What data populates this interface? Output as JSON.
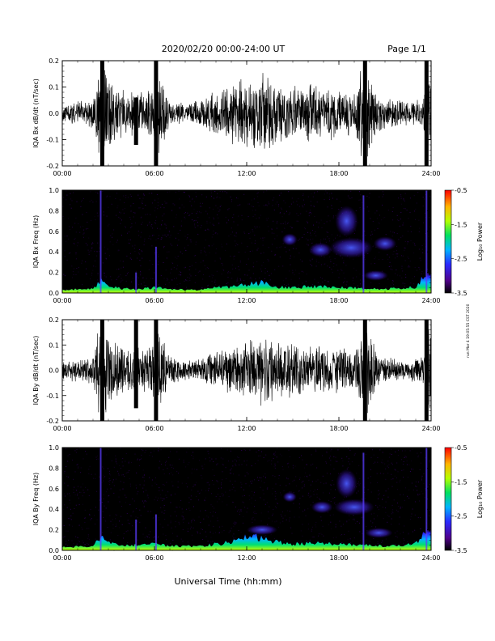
{
  "header": {
    "date_range": "2020/02/20  00:00-24:00 UT",
    "page": "Page 1/1"
  },
  "side_note": "run Mar 4 19:05:55 CST 2020",
  "xlabel": "Universal Time (hh:mm)",
  "colors": {
    "trace": "#000000",
    "background": "#ffffff",
    "spec_bg": "#000000"
  },
  "chart_data": [
    {
      "type": "line",
      "ylabel": "IQA Bx dB/dt (nT/sec)",
      "x_ticks": [
        "00:00",
        "06:00",
        "12:00",
        "18:00",
        "24:00"
      ],
      "xlim": [
        0,
        24
      ],
      "y_ticks": [
        "0.2",
        "0.1",
        "0.0",
        "-0.1",
        "-0.2"
      ],
      "ylim": [
        -0.2,
        0.2
      ],
      "series": [
        {
          "x": [
            0,
            1,
            2,
            2.4,
            2.6,
            2.9,
            3.5,
            4.5,
            5.5,
            6.0,
            6.2,
            7,
            8,
            9,
            10,
            11,
            12,
            13,
            14,
            15,
            16,
            17,
            18,
            19,
            19.6,
            19.9,
            20.5,
            21.5,
            22.5,
            23.5,
            23.8,
            24
          ],
          "values": [
            0.04,
            0.05,
            0.06,
            0.2,
            0.2,
            0.2,
            0.1,
            0.09,
            0.09,
            0.12,
            0.2,
            0.05,
            0.04,
            0.06,
            0.1,
            0.12,
            0.15,
            0.16,
            0.12,
            0.11,
            0.12,
            0.11,
            0.1,
            0.09,
            0.2,
            0.2,
            0.07,
            0.06,
            0.05,
            0.07,
            0.2,
            0.18
          ]
        }
      ],
      "spikes": [
        {
          "x": 2.6,
          "lo": -0.2,
          "hi": 0.2
        },
        {
          "x": 4.8,
          "lo": -0.12,
          "hi": 0.06
        },
        {
          "x": 6.1,
          "lo": -0.2,
          "hi": 0.2
        },
        {
          "x": 19.7,
          "lo": -0.2,
          "hi": 0.2
        },
        {
          "x": 23.7,
          "lo": -0.2,
          "hi": 0.2
        }
      ]
    },
    {
      "type": "heatmap",
      "ylabel": "IQA Bx Freq (Hz)",
      "colorbar_label": "Log₁₀ Power",
      "colorbar_ticks": [
        "-0.5",
        "-1.5",
        "-2.5",
        "-3.5"
      ],
      "colorbar_range": [
        -3.5,
        -0.5
      ],
      "x_ticks": [
        "00:00",
        "06:00",
        "12:00",
        "18:00",
        "24:00"
      ],
      "xlim": [
        0,
        24
      ],
      "y_ticks": [
        "1.0",
        "0.8",
        "0.6",
        "0.4",
        "0.2",
        "0.0"
      ],
      "ylim": [
        0,
        1.0
      ],
      "low_band_profile": {
        "x": [
          0,
          2,
          2.5,
          3,
          4,
          5,
          6,
          7,
          8,
          9,
          10,
          11,
          12,
          13,
          14,
          15,
          16,
          17,
          18,
          19,
          20,
          21,
          22,
          23,
          23.6,
          24
        ],
        "top_hz": [
          0.03,
          0.04,
          0.12,
          0.06,
          0.04,
          0.04,
          0.05,
          0.04,
          0.03,
          0.03,
          0.05,
          0.06,
          0.08,
          0.1,
          0.06,
          0.05,
          0.06,
          0.06,
          0.05,
          0.05,
          0.04,
          0.04,
          0.05,
          0.06,
          0.18,
          0.2
        ]
      },
      "vertical_lines": [
        {
          "x": 2.5,
          "top_hz": 1.0
        },
        {
          "x": 4.8,
          "top_hz": 0.2
        },
        {
          "x": 6.1,
          "top_hz": 0.45
        },
        {
          "x": 19.6,
          "top_hz": 0.95
        },
        {
          "x": 23.7,
          "top_hz": 1.0
        }
      ],
      "blobs": [
        {
          "x": 14.8,
          "hz": 0.52,
          "w": 1.0,
          "h": 0.12,
          "level": -3.0
        },
        {
          "x": 16.8,
          "hz": 0.42,
          "w": 1.5,
          "h": 0.14,
          "level": -2.8
        },
        {
          "x": 18.8,
          "hz": 0.44,
          "w": 2.8,
          "h": 0.2,
          "level": -2.6
        },
        {
          "x": 21.0,
          "hz": 0.48,
          "w": 1.5,
          "h": 0.14,
          "level": -3.0
        },
        {
          "x": 20.4,
          "hz": 0.17,
          "w": 1.6,
          "h": 0.1,
          "level": -3.0
        },
        {
          "x": 18.5,
          "hz": 0.7,
          "w": 1.5,
          "h": 0.3,
          "level": -3.3
        }
      ]
    },
    {
      "type": "line",
      "ylabel": "IQA By dB/dt (nT/sec)",
      "x_ticks": [
        "00:00",
        "06:00",
        "12:00",
        "18:00",
        "24:00"
      ],
      "xlim": [
        0,
        24
      ],
      "y_ticks": [
        "0.2",
        "0.1",
        "0.0",
        "-0.1",
        "-0.2"
      ],
      "ylim": [
        -0.2,
        0.2
      ],
      "series": [
        {
          "x": [
            0,
            1,
            2,
            2.4,
            2.6,
            2.9,
            3.5,
            4.5,
            5.5,
            6.0,
            6.2,
            7,
            8,
            9,
            10,
            11,
            12,
            13,
            14,
            15,
            16,
            17,
            18,
            19,
            19.6,
            19.9,
            20.5,
            21.5,
            22.5,
            23.5,
            23.8,
            24
          ],
          "values": [
            0.04,
            0.05,
            0.06,
            0.2,
            0.2,
            0.2,
            0.12,
            0.1,
            0.1,
            0.12,
            0.2,
            0.06,
            0.04,
            0.05,
            0.08,
            0.1,
            0.12,
            0.15,
            0.12,
            0.12,
            0.11,
            0.1,
            0.1,
            0.08,
            0.2,
            0.2,
            0.07,
            0.05,
            0.04,
            0.06,
            0.2,
            0.18
          ]
        }
      ],
      "spikes": [
        {
          "x": 2.6,
          "lo": -0.2,
          "hi": 0.2
        },
        {
          "x": 4.8,
          "lo": -0.15,
          "hi": 0.2
        },
        {
          "x": 6.1,
          "lo": -0.2,
          "hi": 0.2
        },
        {
          "x": 19.7,
          "lo": -0.2,
          "hi": 0.2
        },
        {
          "x": 23.7,
          "lo": -0.2,
          "hi": 0.2
        }
      ]
    },
    {
      "type": "heatmap",
      "ylabel": "IQA By Freq (Hz)",
      "colorbar_label": "Log₁₀ Power",
      "colorbar_ticks": [
        "-0.5",
        "-1.5",
        "-2.5",
        "-3.5"
      ],
      "colorbar_range": [
        -3.5,
        -0.5
      ],
      "x_ticks": [
        "00:00",
        "06:00",
        "12:00",
        "18:00",
        "24:00"
      ],
      "xlim": [
        0,
        24
      ],
      "y_ticks": [
        "1.0",
        "0.8",
        "0.6",
        "0.4",
        "0.2",
        "0.0"
      ],
      "ylim": [
        0,
        1.0
      ],
      "low_band_profile": {
        "x": [
          0,
          2,
          2.5,
          3,
          4,
          5,
          6,
          7,
          8,
          9,
          10,
          11,
          12,
          13,
          14,
          15,
          16,
          17,
          18,
          19,
          20,
          21,
          22,
          23,
          23.6,
          24
        ],
        "top_hz": [
          0.03,
          0.04,
          0.13,
          0.07,
          0.05,
          0.05,
          0.06,
          0.04,
          0.04,
          0.04,
          0.06,
          0.08,
          0.14,
          0.12,
          0.08,
          0.06,
          0.07,
          0.07,
          0.06,
          0.05,
          0.05,
          0.04,
          0.05,
          0.07,
          0.18,
          0.22
        ]
      },
      "vertical_lines": [
        {
          "x": 2.5,
          "top_hz": 1.0
        },
        {
          "x": 4.8,
          "top_hz": 0.3
        },
        {
          "x": 6.1,
          "top_hz": 0.35
        },
        {
          "x": 19.6,
          "top_hz": 0.95
        },
        {
          "x": 23.7,
          "top_hz": 1.0
        }
      ],
      "blobs": [
        {
          "x": 14.8,
          "hz": 0.52,
          "w": 0.9,
          "h": 0.1,
          "level": -3.0
        },
        {
          "x": 16.9,
          "hz": 0.42,
          "w": 1.4,
          "h": 0.12,
          "level": -2.8
        },
        {
          "x": 19.0,
          "hz": 0.42,
          "w": 2.6,
          "h": 0.16,
          "level": -2.7
        },
        {
          "x": 20.6,
          "hz": 0.17,
          "w": 1.8,
          "h": 0.1,
          "level": -3.0
        },
        {
          "x": 18.5,
          "hz": 0.65,
          "w": 1.4,
          "h": 0.28,
          "level": -3.3
        },
        {
          "x": 13.0,
          "hz": 0.2,
          "w": 2.0,
          "h": 0.1,
          "level": -3.1
        }
      ]
    }
  ]
}
